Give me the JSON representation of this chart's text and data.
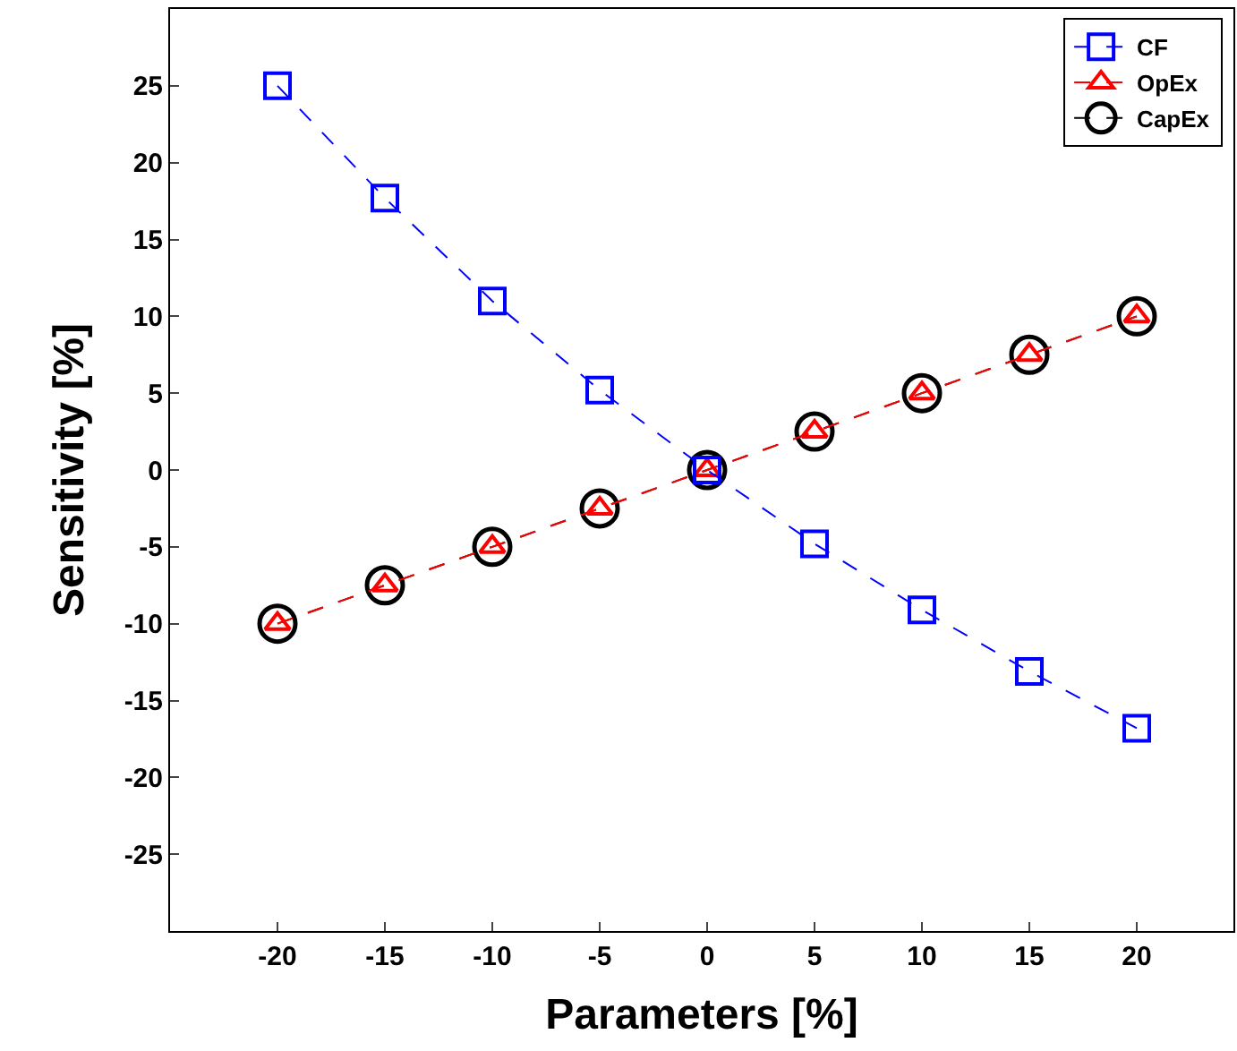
{
  "chart_data": {
    "type": "line",
    "xlabel": "Parameters [%]",
    "ylabel": "Sensitivity [%]",
    "x": [
      -20,
      -15,
      -10,
      -5,
      0,
      5,
      10,
      15,
      20
    ],
    "xlim": [
      -25,
      24.5
    ],
    "xticks": [
      -20,
      -15,
      -10,
      -5,
      0,
      5,
      10,
      15,
      20
    ],
    "ylim": [
      -30,
      30
    ],
    "yticks": [
      -25,
      -20,
      -15,
      -10,
      -5,
      0,
      5,
      10,
      15,
      20,
      25
    ],
    "legend": "top right",
    "line_style": "dashed",
    "series": [
      {
        "name": "CF",
        "color": "#0000ff",
        "marker": "square",
        "values": [
          25,
          17.7,
          11,
          5.2,
          0,
          -4.8,
          -9.1,
          -13.1,
          -16.8
        ]
      },
      {
        "name": "OpEx",
        "color": "#ff0000",
        "marker": "triangle",
        "values": [
          -10,
          -7.5,
          -5,
          -2.5,
          0,
          2.5,
          5,
          7.5,
          10
        ]
      },
      {
        "name": "CapEx",
        "color": "#000000",
        "marker": "circle",
        "values": [
          -10,
          -7.5,
          -5,
          -2.5,
          0,
          2.5,
          5,
          7.5,
          10
        ]
      }
    ]
  }
}
